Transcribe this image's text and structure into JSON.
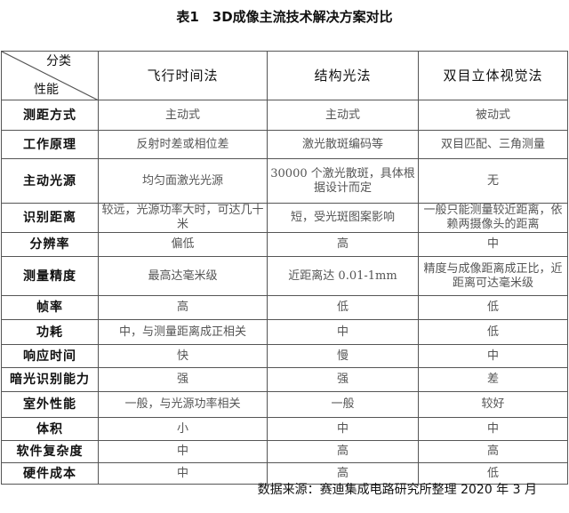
{
  "title": "表1　3D成像主流技术解决方案对比",
  "header": {
    "corner_top": "分类",
    "corner_bottom": "性能",
    "columns": [
      "飞行时间法",
      "结构光法",
      "双目立体视觉法"
    ]
  },
  "rows": [
    {
      "label": "测距方式",
      "cells": [
        "主动式",
        "主动式",
        "被动式"
      ]
    },
    {
      "label": "工作原理",
      "cells": [
        "反射时差或相位差",
        "激光散斑编码等",
        "双目匹配、三角测量"
      ]
    },
    {
      "label": "主动光源",
      "cells": [
        "均匀面激光光源",
        "30000 个激光散斑，具体根据设计而定",
        "无"
      ]
    },
    {
      "label": "识别距离",
      "cells": [
        "较远，光源功率大时，可达几十米",
        "短，受光斑图案影响",
        "一般只能测量较近距离，依赖两摄像头的距离"
      ]
    },
    {
      "label": "分辨率",
      "cells": [
        "偏低",
        "高",
        "中"
      ]
    },
    {
      "label": "测量精度",
      "cells": [
        "最高达毫米级",
        "近距离达 0.01-1mm",
        "精度与成像距离成正比，近距离可达毫米级"
      ]
    },
    {
      "label": "帧率",
      "cells": [
        "高",
        "低",
        "低"
      ]
    },
    {
      "label": "功耗",
      "cells": [
        "中，与测量距离成正相关",
        "中",
        "低"
      ]
    },
    {
      "label": "响应时间",
      "cells": [
        "快",
        "慢",
        "中"
      ]
    },
    {
      "label": "暗光识别能力",
      "cells": [
        "强",
        "强",
        "差"
      ]
    },
    {
      "label": "室外性能",
      "cells": [
        "一般，与光源功率相关",
        "一般",
        "较好"
      ]
    },
    {
      "label": "体积",
      "cells": [
        "小",
        "中",
        "中"
      ]
    },
    {
      "label": "软件复杂度",
      "cells": [
        "中",
        "高",
        "高"
      ]
    },
    {
      "label": "硬件成本",
      "cells": [
        "中",
        "高",
        "低"
      ]
    }
  ],
  "source": "数据来源：赛迪集成电路研究所整理  2020 年 3 月"
}
